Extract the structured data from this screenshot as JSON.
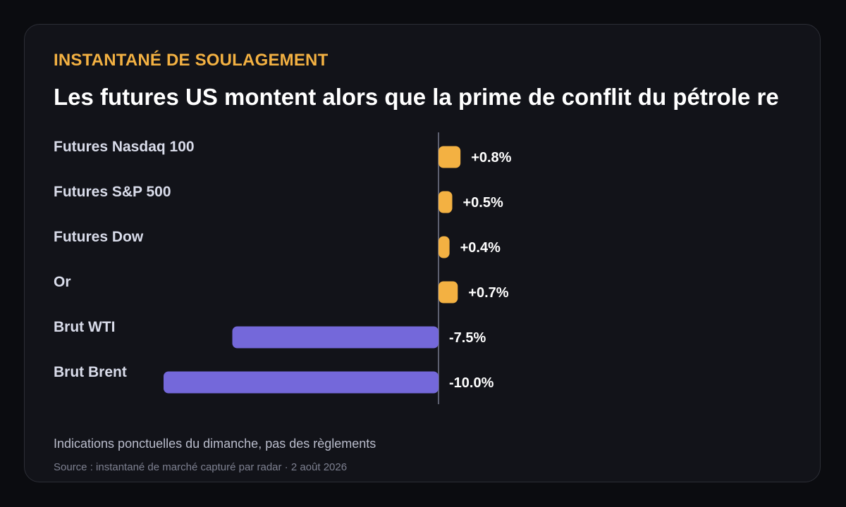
{
  "card": {
    "kicker": "INSTANTANÉ DE SOULAGEMENT",
    "title": "Les futures US montent alors que la prime de conflit du pétrole re",
    "note": "Indications ponctuelles du dimanche, pas des règlements",
    "source": "Source : instantané de marché capturé par radar · 2 août 2026"
  },
  "colors": {
    "positive": "#f3b142",
    "negative": "#7468da",
    "zero_line": "#5d6070",
    "kicker": "#f3b142"
  },
  "chart_data": {
    "type": "bar",
    "orientation": "horizontal",
    "categories": [
      "Futures Nasdaq 100",
      "Futures S&P 500",
      "Futures Dow",
      "Or",
      "Brut WTI",
      "Brut Brent"
    ],
    "values": [
      0.8,
      0.5,
      0.4,
      0.7,
      -7.5,
      -10.0
    ],
    "value_labels": [
      "+0.8%",
      "+0.5%",
      "+0.4%",
      "+0.7%",
      "-7.5%",
      "-10.0%"
    ],
    "unit": "%",
    "xlim": [
      -10.0,
      0.8
    ],
    "grid": false,
    "legend": "none"
  }
}
